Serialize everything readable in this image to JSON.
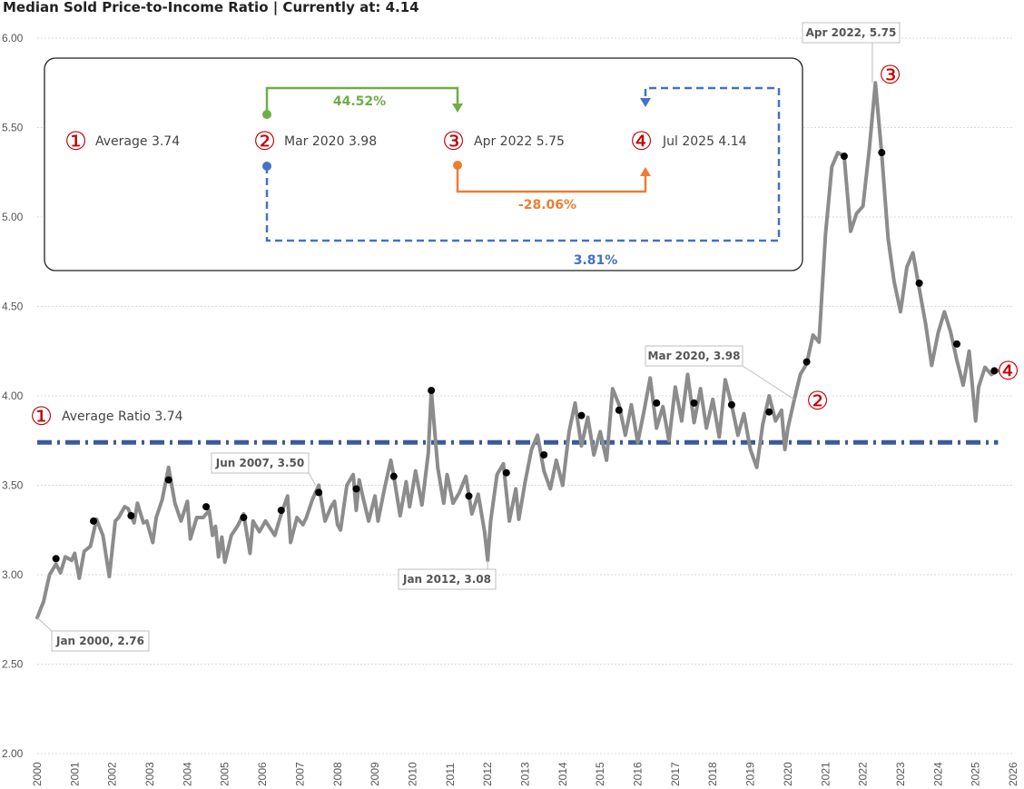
{
  "chart_data": {
    "type": "line",
    "title": "Median Sold Price-to-Income Ratio | Currently at: 4.14",
    "xlabel": "",
    "ylabel": "",
    "xlim": [
      2000,
      2026
    ],
    "ylim": [
      2.0,
      6.0
    ],
    "grid": true,
    "x_ticks": [
      "2000",
      "2001",
      "2002",
      "2003",
      "2004",
      "2005",
      "2006",
      "2007",
      "2008",
      "2009",
      "2010",
      "2011",
      "2012",
      "2013",
      "2014",
      "2015",
      "2016",
      "2017",
      "2018",
      "2019",
      "2020",
      "2021",
      "2022",
      "2023",
      "2024",
      "2025",
      "2026"
    ],
    "y_ticks": [
      "2.00",
      "2.50",
      "3.00",
      "3.50",
      "4.00",
      "4.50",
      "5.00",
      "5.50",
      "6.00"
    ],
    "series": [
      {
        "color": "#8c8c8c",
        "points": [
          [
            2000.0,
            2.76
          ],
          [
            2000.17,
            2.85
          ],
          [
            2000.33,
            3.0
          ],
          [
            2000.5,
            3.06
          ],
          [
            2000.62,
            3.01
          ],
          [
            2000.75,
            3.1
          ],
          [
            2000.92,
            3.08
          ],
          [
            2001.0,
            3.12
          ],
          [
            2001.12,
            2.98
          ],
          [
            2001.25,
            3.13
          ],
          [
            2001.42,
            3.16
          ],
          [
            2001.58,
            3.31
          ],
          [
            2001.75,
            3.22
          ],
          [
            2001.92,
            2.99
          ],
          [
            2002.08,
            3.3
          ],
          [
            2002.17,
            3.32
          ],
          [
            2002.33,
            3.38
          ],
          [
            2002.42,
            3.37
          ],
          [
            2002.58,
            3.29
          ],
          [
            2002.67,
            3.4
          ],
          [
            2002.83,
            3.29
          ],
          [
            2002.92,
            3.3
          ],
          [
            2003.08,
            3.18
          ],
          [
            2003.17,
            3.32
          ],
          [
            2003.33,
            3.42
          ],
          [
            2003.5,
            3.6
          ],
          [
            2003.67,
            3.4
          ],
          [
            2003.83,
            3.3
          ],
          [
            2004.0,
            3.41
          ],
          [
            2004.08,
            3.2
          ],
          [
            2004.25,
            3.32
          ],
          [
            2004.42,
            3.32
          ],
          [
            2004.58,
            3.36
          ],
          [
            2004.67,
            3.22
          ],
          [
            2004.75,
            3.27
          ],
          [
            2004.83,
            3.1
          ],
          [
            2004.92,
            3.21
          ],
          [
            2005.0,
            3.07
          ],
          [
            2005.17,
            3.22
          ],
          [
            2005.33,
            3.27
          ],
          [
            2005.5,
            3.34
          ],
          [
            2005.67,
            3.12
          ],
          [
            2005.75,
            3.3
          ],
          [
            2005.92,
            3.24
          ],
          [
            2006.08,
            3.3
          ],
          [
            2006.33,
            3.22
          ],
          [
            2006.5,
            3.34
          ],
          [
            2006.67,
            3.44
          ],
          [
            2006.75,
            3.18
          ],
          [
            2006.92,
            3.32
          ],
          [
            2007.08,
            3.28
          ],
          [
            2007.17,
            3.32
          ],
          [
            2007.33,
            3.42
          ],
          [
            2007.5,
            3.5
          ],
          [
            2007.67,
            3.3
          ],
          [
            2007.83,
            3.38
          ],
          [
            2007.92,
            3.41
          ],
          [
            2008.0,
            3.28
          ],
          [
            2008.08,
            3.25
          ],
          [
            2008.25,
            3.5
          ],
          [
            2008.42,
            3.56
          ],
          [
            2008.5,
            3.36
          ],
          [
            2008.58,
            3.53
          ],
          [
            2008.67,
            3.44
          ],
          [
            2008.83,
            3.3
          ],
          [
            2009.0,
            3.44
          ],
          [
            2009.08,
            3.3
          ],
          [
            2009.25,
            3.48
          ],
          [
            2009.42,
            3.64
          ],
          [
            2009.5,
            3.55
          ],
          [
            2009.67,
            3.33
          ],
          [
            2009.83,
            3.52
          ],
          [
            2009.92,
            3.38
          ],
          [
            2010.08,
            3.58
          ],
          [
            2010.25,
            3.39
          ],
          [
            2010.42,
            3.68
          ],
          [
            2010.5,
            4.03
          ],
          [
            2010.67,
            3.6
          ],
          [
            2010.83,
            3.4
          ],
          [
            2010.92,
            3.56
          ],
          [
            2011.08,
            3.4
          ],
          [
            2011.25,
            3.46
          ],
          [
            2011.42,
            3.55
          ],
          [
            2011.58,
            3.34
          ],
          [
            2011.75,
            3.45
          ],
          [
            2011.92,
            3.24
          ],
          [
            2012.0,
            3.08
          ],
          [
            2012.08,
            3.3
          ],
          [
            2012.25,
            3.56
          ],
          [
            2012.42,
            3.62
          ],
          [
            2012.58,
            3.3
          ],
          [
            2012.75,
            3.48
          ],
          [
            2012.83,
            3.31
          ],
          [
            2013.0,
            3.52
          ],
          [
            2013.17,
            3.7
          ],
          [
            2013.33,
            3.78
          ],
          [
            2013.5,
            3.58
          ],
          [
            2013.67,
            3.48
          ],
          [
            2013.83,
            3.64
          ],
          [
            2014.0,
            3.5
          ],
          [
            2014.17,
            3.8
          ],
          [
            2014.33,
            3.96
          ],
          [
            2014.5,
            3.72
          ],
          [
            2014.67,
            3.88
          ],
          [
            2014.83,
            3.67
          ],
          [
            2015.0,
            3.8
          ],
          [
            2015.17,
            3.64
          ],
          [
            2015.33,
            4.04
          ],
          [
            2015.5,
            3.95
          ],
          [
            2015.67,
            3.78
          ],
          [
            2015.83,
            3.95
          ],
          [
            2016.0,
            3.74
          ],
          [
            2016.17,
            3.92
          ],
          [
            2016.33,
            4.1
          ],
          [
            2016.5,
            3.82
          ],
          [
            2016.67,
            3.94
          ],
          [
            2016.83,
            3.75
          ],
          [
            2017.0,
            4.05
          ],
          [
            2017.17,
            3.86
          ],
          [
            2017.33,
            4.12
          ],
          [
            2017.5,
            3.85
          ],
          [
            2017.67,
            4.04
          ],
          [
            2017.83,
            3.82
          ],
          [
            2018.0,
            3.98
          ],
          [
            2018.17,
            3.77
          ],
          [
            2018.33,
            4.09
          ],
          [
            2018.5,
            3.95
          ],
          [
            2018.67,
            3.78
          ],
          [
            2018.83,
            3.9
          ],
          [
            2019.0,
            3.7
          ],
          [
            2019.17,
            3.6
          ],
          [
            2019.33,
            3.84
          ],
          [
            2019.5,
            4.0
          ],
          [
            2019.67,
            3.86
          ],
          [
            2019.83,
            3.92
          ],
          [
            2019.92,
            3.7
          ],
          [
            2020.0,
            3.82
          ],
          [
            2020.17,
            3.98
          ],
          [
            2020.33,
            4.12
          ],
          [
            2020.5,
            4.18
          ],
          [
            2020.67,
            4.34
          ],
          [
            2020.83,
            4.3
          ],
          [
            2021.0,
            4.9
          ],
          [
            2021.17,
            5.28
          ],
          [
            2021.33,
            5.36
          ],
          [
            2021.5,
            5.34
          ],
          [
            2021.67,
            4.92
          ],
          [
            2021.83,
            5.02
          ],
          [
            2022.0,
            5.06
          ],
          [
            2022.17,
            5.38
          ],
          [
            2022.33,
            5.75
          ],
          [
            2022.5,
            5.35
          ],
          [
            2022.67,
            4.88
          ],
          [
            2022.83,
            4.64
          ],
          [
            2023.0,
            4.47
          ],
          [
            2023.17,
            4.72
          ],
          [
            2023.33,
            4.8
          ],
          [
            2023.5,
            4.6
          ],
          [
            2023.67,
            4.4
          ],
          [
            2023.83,
            4.17
          ],
          [
            2024.0,
            4.35
          ],
          [
            2024.17,
            4.47
          ],
          [
            2024.33,
            4.36
          ],
          [
            2024.5,
            4.2
          ],
          [
            2024.67,
            4.06
          ],
          [
            2024.83,
            4.25
          ],
          [
            2025.0,
            3.86
          ],
          [
            2025.08,
            4.05
          ],
          [
            2025.25,
            4.16
          ],
          [
            2025.42,
            4.12
          ],
          [
            2025.58,
            4.14
          ]
        ]
      }
    ],
    "markers": [
      [
        2000.5,
        3.09
      ],
      [
        2001.5,
        3.3
      ],
      [
        2002.5,
        3.33
      ],
      [
        2003.5,
        3.53
      ],
      [
        2004.5,
        3.38
      ],
      [
        2005.5,
        3.32
      ],
      [
        2006.5,
        3.36
      ],
      [
        2007.5,
        3.46
      ],
      [
        2008.5,
        3.48
      ],
      [
        2009.5,
        3.55
      ],
      [
        2010.5,
        4.03
      ],
      [
        2011.5,
        3.44
      ],
      [
        2012.5,
        3.57
      ],
      [
        2013.5,
        3.67
      ],
      [
        2014.5,
        3.89
      ],
      [
        2015.5,
        3.92
      ],
      [
        2016.5,
        3.96
      ],
      [
        2017.5,
        3.96
      ],
      [
        2018.5,
        3.95
      ],
      [
        2019.5,
        3.91
      ],
      [
        2020.5,
        4.19
      ],
      [
        2021.5,
        5.34
      ],
      [
        2022.5,
        5.36
      ],
      [
        2023.5,
        4.63
      ],
      [
        2024.5,
        4.29
      ],
      [
        2025.5,
        4.14
      ]
    ],
    "average": {
      "value": 3.74,
      "color": "#3a5a9a"
    },
    "callouts": [
      {
        "text": "Jan 2000, 2.76",
        "x": 2000.0,
        "y": 2.76
      },
      {
        "text": "Jun 2007, 3.50",
        "x": 2007.42,
        "y": 3.5
      },
      {
        "text": "Jan 2012, 3.08",
        "x": 2012.0,
        "y": 3.08
      },
      {
        "text": "Mar 2020, 3.98",
        "x": 2020.17,
        "y": 3.98
      },
      {
        "text": "Apr 2022, 5.75",
        "x": 2022.25,
        "y": 5.75
      }
    ],
    "point_labels": {
      "p2_symbol": "②",
      "p3_symbol": "③",
      "p4_symbol": "④"
    },
    "average_label": {
      "symbol": "①",
      "text": "Average Ratio 3.74"
    },
    "summary_panel": {
      "items": [
        {
          "symbol": "①",
          "text": "Average 3.74"
        },
        {
          "symbol": "②",
          "text": "Mar 2020 3.98"
        },
        {
          "symbol": "③",
          "text": "Apr 2022 5.75"
        },
        {
          "symbol": "④",
          "text": "Jul 2025 4.14"
        }
      ],
      "changes": [
        {
          "text": "44.52%",
          "color": "#70ad47"
        },
        {
          "text": "-28.06%",
          "color": "#ed7d31"
        },
        {
          "text": "3.81%",
          "color": "#4472c4"
        }
      ]
    }
  }
}
